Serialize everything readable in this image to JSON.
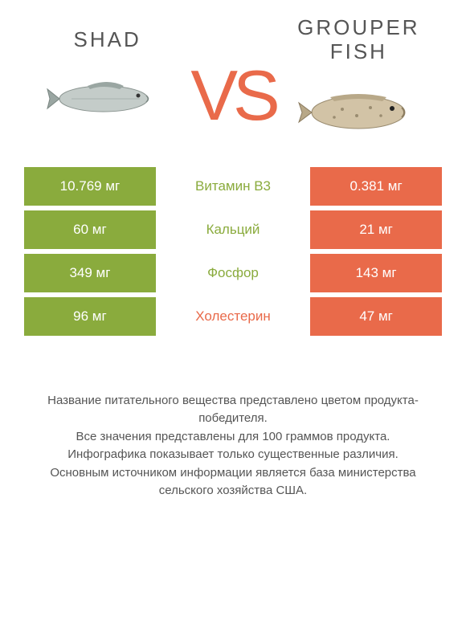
{
  "left": {
    "title": "SHAD",
    "fish_fill": "#b8c4c2",
    "fish_stroke": "#7a8a88"
  },
  "right": {
    "title": "GROUPER FISH",
    "fish_fill": "#c9b89a",
    "fish_stroke": "#8a7a5e"
  },
  "vs": "VS",
  "colors": {
    "left": "#8aab3d",
    "right": "#e96a4a"
  },
  "rows": [
    {
      "left": "10.769 мг",
      "label": "Витамин B3",
      "label_color": "green",
      "right": "0.381 мг"
    },
    {
      "left": "60 мг",
      "label": "Кальций",
      "label_color": "green",
      "right": "21 мг"
    },
    {
      "left": "349 мг",
      "label": "Фосфор",
      "label_color": "green",
      "right": "143 мг"
    },
    {
      "left": "96 мг",
      "label": "Холестерин",
      "label_color": "orange",
      "right": "47 мг"
    }
  ],
  "footer": {
    "l1": "Название питательного вещества представлено цветом продукта-победителя.",
    "l2": "Все значения представлены для 100 граммов продукта.",
    "l3": "Инфографика показывает только существенные различия.",
    "l4": "Основным источником информации является база министерства сельского хозяйства США."
  }
}
